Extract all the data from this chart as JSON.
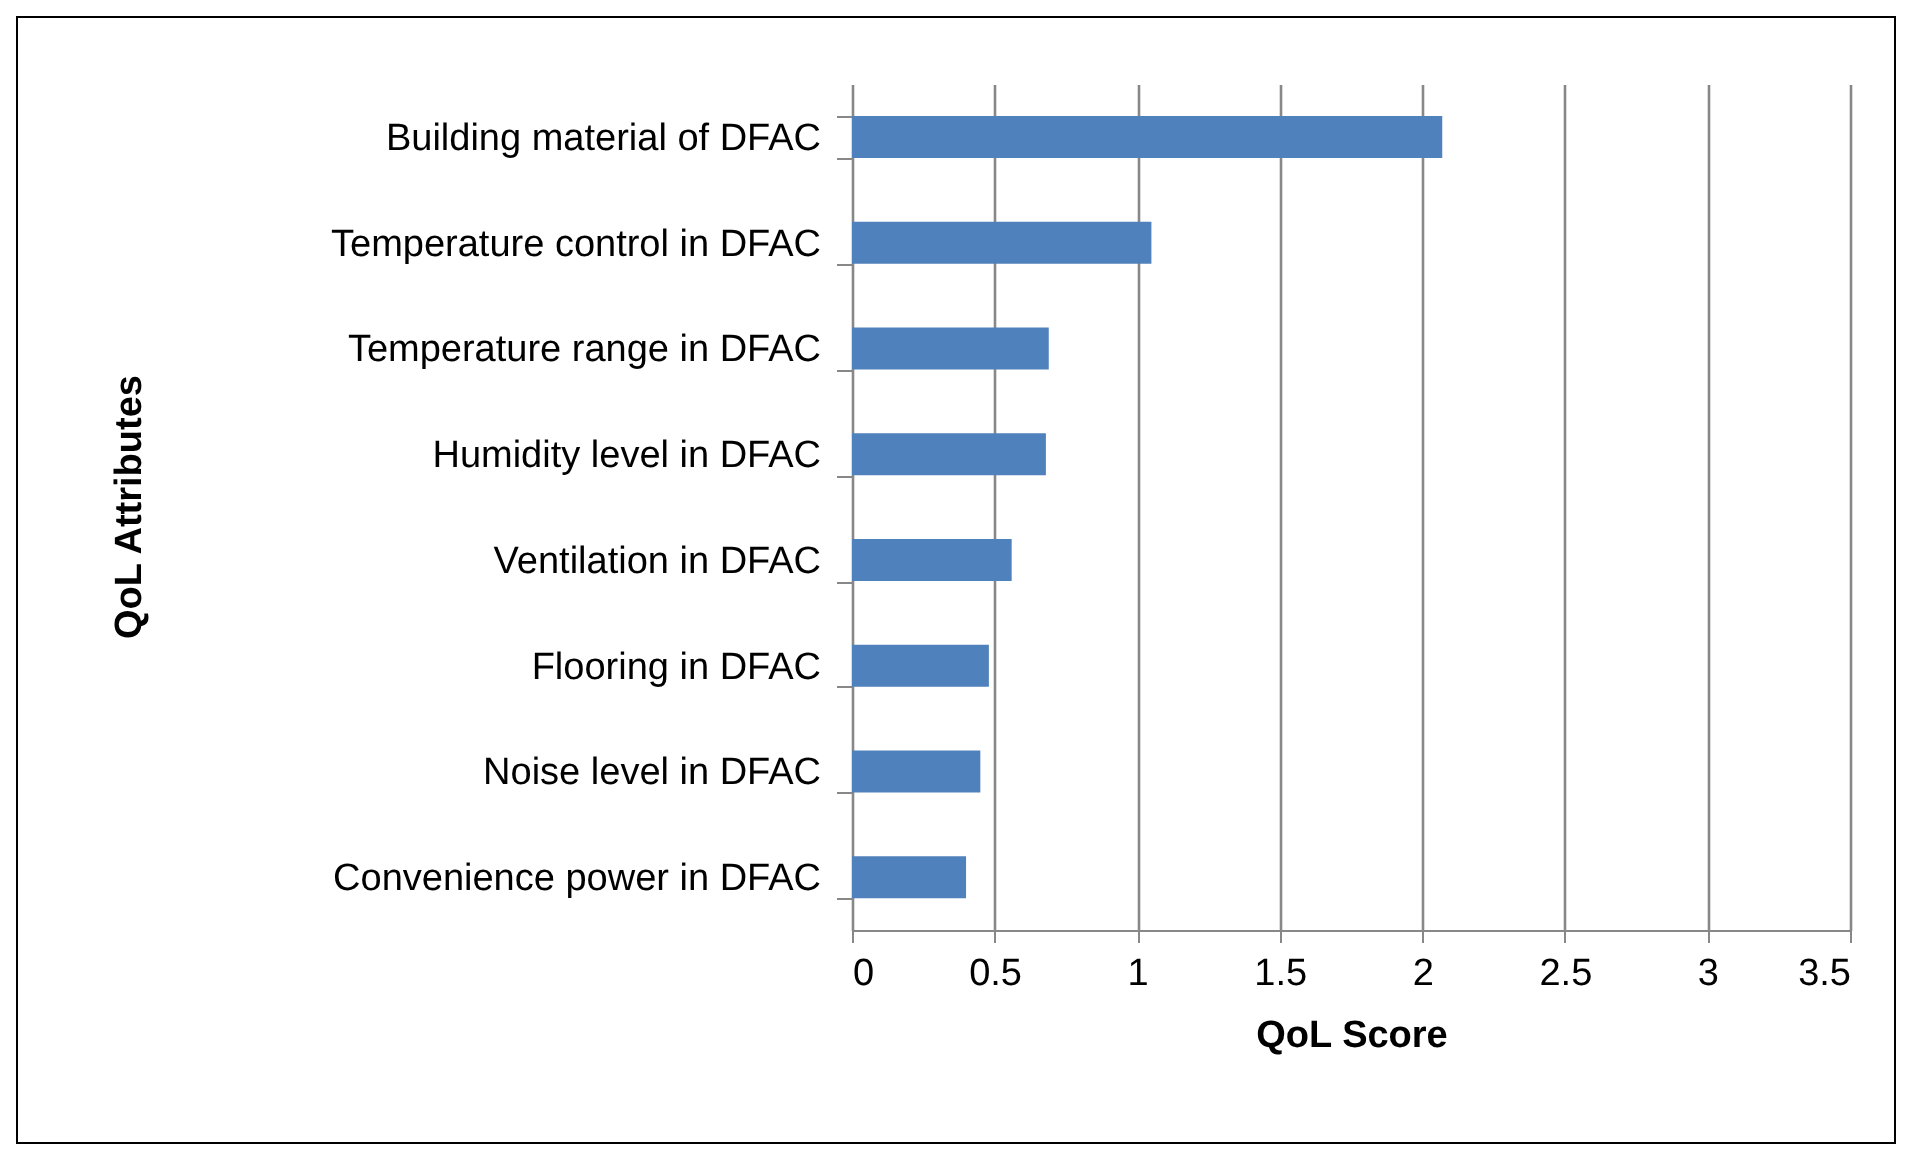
{
  "chart_data": {
    "type": "bar",
    "orientation": "horizontal",
    "categories": [
      "Building material of DFAC",
      "Temperature control in DFAC",
      "Temperature range in DFAC",
      "Humidity level in DFAC",
      "Ventilation in DFAC",
      "Flooring in DFAC",
      "Noise level in DFAC",
      "Convenience power in DFAC"
    ],
    "values": [
      2.07,
      1.05,
      0.69,
      0.68,
      0.56,
      0.48,
      0.45,
      0.4
    ],
    "color": "#4f81bd",
    "xlim": [
      0,
      3.5
    ],
    "xticks": [
      0,
      0.5,
      1,
      1.5,
      2,
      2.5,
      3,
      3.5
    ],
    "xlabel": "QoL Score",
    "ylabel": "QoL Attributes",
    "grid": "x",
    "legend": false
  }
}
